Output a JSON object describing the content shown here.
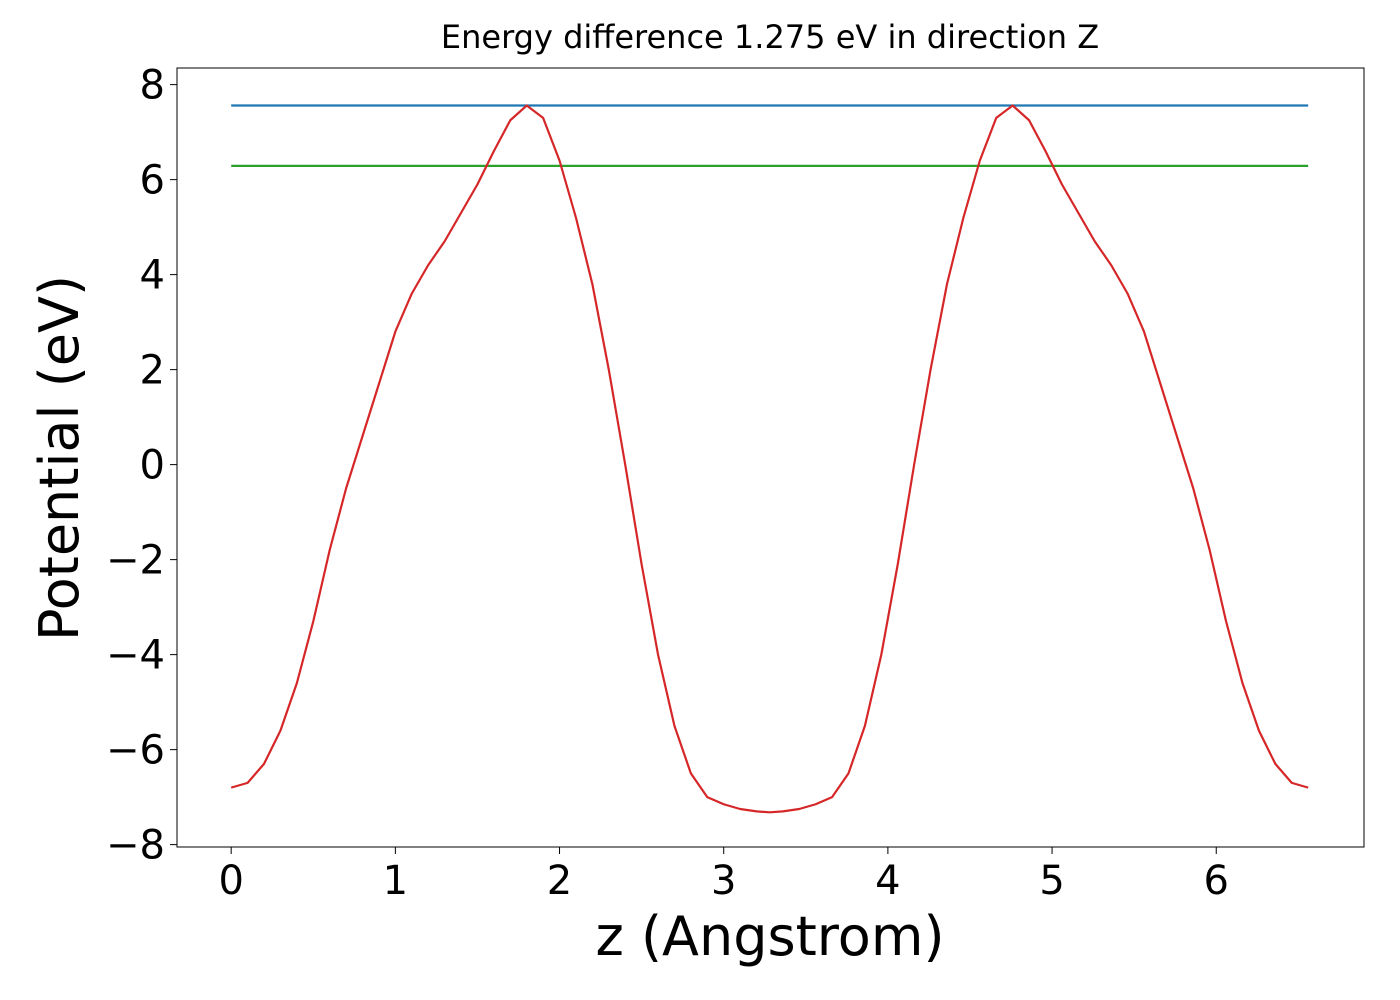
{
  "chart_data": {
    "type": "line",
    "title": "Energy difference 1.275 eV in direction Z",
    "xlabel": "z (Angstrom)",
    "ylabel": "Potential (eV)",
    "xlim": [
      -0.33,
      6.9
    ],
    "ylim": [
      -8.05,
      8.35
    ],
    "xticks": [
      0,
      1,
      2,
      3,
      4,
      5,
      6
    ],
    "yticks": [
      {
        "value": -8,
        "label": "−8"
      },
      {
        "value": -6,
        "label": "−6"
      },
      {
        "value": -4,
        "label": "−4"
      },
      {
        "value": -2,
        "label": "−2"
      },
      0,
      2,
      4,
      6,
      8
    ],
    "series": [
      {
        "color": "#1f77b4",
        "x": [
          0,
          6.56
        ],
        "values": [
          7.56,
          7.56
        ]
      },
      {
        "color": "#2ca02c",
        "x": [
          0,
          6.56
        ],
        "values": [
          6.29,
          6.29
        ]
      },
      {
        "color": "#d62728",
        "x": [
          0,
          0.1,
          0.2,
          0.3,
          0.4,
          0.5,
          0.6,
          0.7,
          0.8,
          0.9,
          1.0,
          1.1,
          1.2,
          1.3,
          1.4,
          1.5,
          1.6,
          1.7,
          1.8,
          1.9,
          2.0,
          2.1,
          2.2,
          2.3,
          2.4,
          2.5,
          2.6,
          2.7,
          2.8,
          2.9,
          3.0,
          3.1,
          3.2,
          3.28,
          3.36,
          3.46,
          3.56,
          3.66,
          3.76,
          3.86,
          3.96,
          4.06,
          4.16,
          4.26,
          4.36,
          4.46,
          4.56,
          4.66,
          4.76,
          4.86,
          4.96,
          5.06,
          5.16,
          5.26,
          5.36,
          5.46,
          5.56,
          5.66,
          5.76,
          5.86,
          5.96,
          6.06,
          6.16,
          6.26,
          6.36,
          6.46,
          6.56
        ],
        "values": [
          -6.8,
          -6.7,
          -6.3,
          -5.6,
          -4.6,
          -3.3,
          -1.8,
          -0.5,
          0.6,
          1.7,
          2.8,
          3.6,
          4.2,
          4.7,
          5.3,
          5.9,
          6.6,
          7.25,
          7.56,
          7.3,
          6.4,
          5.2,
          3.8,
          2.0,
          0.0,
          -2.1,
          -4.0,
          -5.5,
          -6.5,
          -7.0,
          -7.15,
          -7.25,
          -7.3,
          -7.32,
          -7.3,
          -7.25,
          -7.15,
          -7.0,
          -6.5,
          -5.5,
          -4.0,
          -2.1,
          0.0,
          2.0,
          3.8,
          5.2,
          6.4,
          7.3,
          7.56,
          7.25,
          6.6,
          5.9,
          5.3,
          4.7,
          4.2,
          3.6,
          2.8,
          1.7,
          0.6,
          -0.5,
          -1.8,
          -3.3,
          -4.6,
          -5.6,
          -6.3,
          -6.7,
          -6.8
        ]
      }
    ]
  }
}
